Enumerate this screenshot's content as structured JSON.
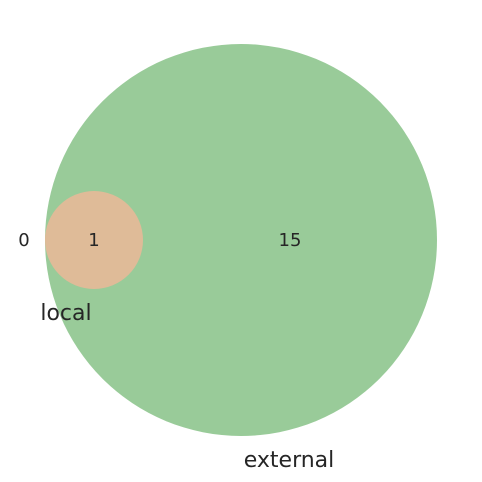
{
  "diagram": {
    "type": "venn",
    "sets": [
      {
        "key": "local",
        "label": "local",
        "color": "#dfbb98"
      },
      {
        "key": "external",
        "label": "external",
        "color": "#99cb99"
      }
    ],
    "regions": {
      "local_only": "0",
      "local_and_external": "1",
      "external_only": "15"
    },
    "background": "#ffffff"
  }
}
